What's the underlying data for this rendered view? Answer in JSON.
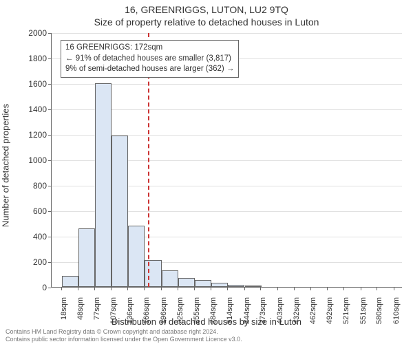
{
  "title_main": "16, GREENRIGGS, LUTON, LU2 9TQ",
  "title_sub": "Size of property relative to detached houses in Luton",
  "ylabel": "Number of detached properties",
  "xlabel": "Distribution of detached houses by size in Luton",
  "footer_line1": "Contains HM Land Registry data © Crown copyright and database right 2024.",
  "footer_line2": "Contains public sector information licensed under the Open Government Licence v3.0.",
  "chart": {
    "type": "histogram",
    "background_color": "#ffffff",
    "grid_color": "#e0e0e0",
    "axis_color": "#666666",
    "bar_fill": "#dbe6f4",
    "bar_stroke": "#666666",
    "marker_color": "#cc3333",
    "marker_x": 172,
    "xlim": [
      0,
      625
    ],
    "ylim": [
      0,
      2000
    ],
    "ytick_step": 200,
    "bar_bin_width": 29.6,
    "bars": [
      {
        "x0": 18,
        "count": 85
      },
      {
        "x0": 48,
        "count": 460
      },
      {
        "x0": 77,
        "count": 1600
      },
      {
        "x0": 107,
        "count": 1190
      },
      {
        "x0": 136,
        "count": 480
      },
      {
        "x0": 166,
        "count": 210
      },
      {
        "x0": 196,
        "count": 130
      },
      {
        "x0": 225,
        "count": 70
      },
      {
        "x0": 255,
        "count": 55
      },
      {
        "x0": 284,
        "count": 30
      },
      {
        "x0": 314,
        "count": 18
      },
      {
        "x0": 344,
        "count": 8
      }
    ],
    "xticks": [
      "18sqm",
      "48sqm",
      "77sqm",
      "107sqm",
      "136sqm",
      "166sqm",
      "196sqm",
      "225sqm",
      "255sqm",
      "284sqm",
      "314sqm",
      "344sqm",
      "373sqm",
      "403sqm",
      "432sqm",
      "462sqm",
      "492sqm",
      "521sqm",
      "551sqm",
      "580sqm",
      "610sqm"
    ],
    "xtick_positions": [
      18,
      48,
      77,
      107,
      136,
      166,
      196,
      225,
      255,
      284,
      314,
      344,
      373,
      403,
      432,
      462,
      492,
      521,
      551,
      580,
      610
    ],
    "title_fontsize": 14,
    "label_fontsize": 13,
    "tick_fontsize": 12
  },
  "legend": {
    "line1": "16 GREENRIGGS: 172sqm",
    "line2": "← 91% of detached houses are smaller (3,817)",
    "line3": "9% of semi-detached houses are larger (362) →"
  }
}
